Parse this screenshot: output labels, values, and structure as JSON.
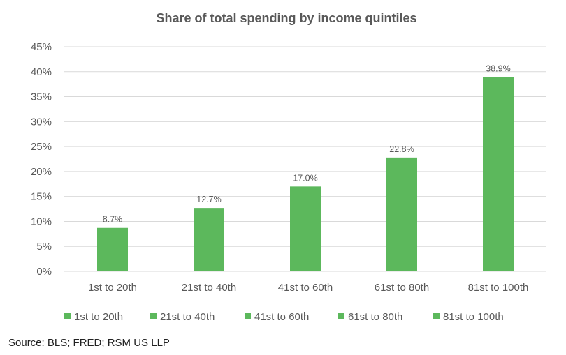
{
  "chart_data": {
    "type": "bar",
    "title": "Share of total spending by income quintiles",
    "categories": [
      "1st to 20th",
      "21st to 40th",
      "41st to 60th",
      "61st to 80th",
      "81st to 100th"
    ],
    "values": [
      8.7,
      12.7,
      17.0,
      22.8,
      38.9
    ],
    "data_labels": [
      "8.7%",
      "12.7%",
      "17.0%",
      "22.8%",
      "38.9%"
    ],
    "yticks": [
      "0%",
      "5%",
      "10%",
      "15%",
      "20%",
      "25%",
      "30%",
      "35%",
      "40%",
      "45%"
    ],
    "ylim": [
      0,
      45
    ],
    "ystep": 5,
    "grid": true,
    "legend_position": "bottom",
    "legend": [
      "1st to 20th",
      "21st to 40th",
      "41st to 60th",
      "61st to 80th",
      "81st to 100th"
    ],
    "bar_color": "#5cb85c",
    "grid_color": "#d9d9d9"
  },
  "footer": {
    "source": "Source: BLS; FRED; RSM US LLP"
  }
}
